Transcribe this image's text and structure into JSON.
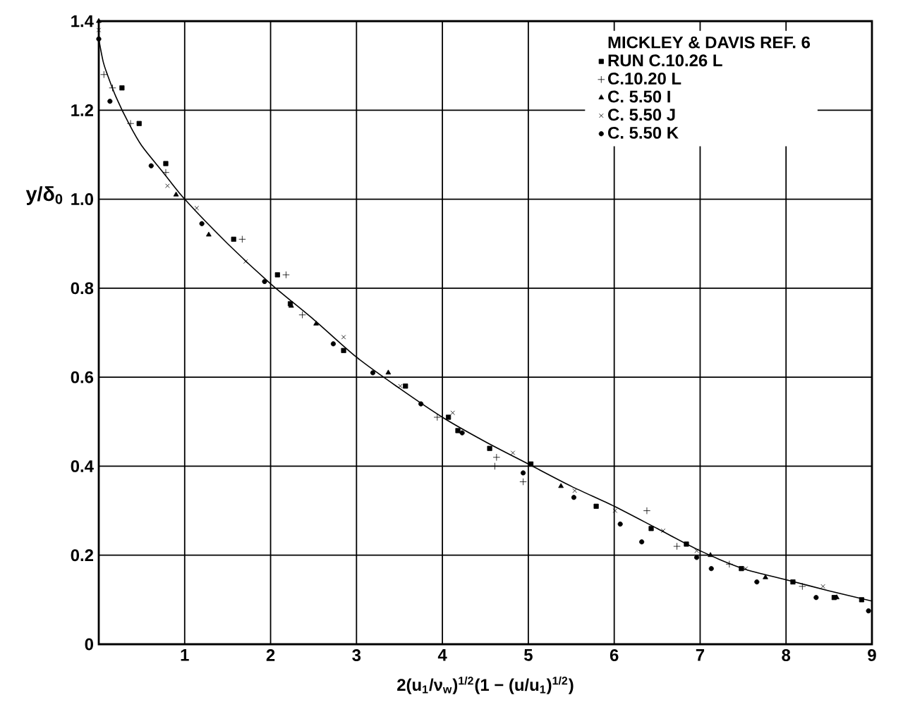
{
  "chart_data": {
    "type": "scatter",
    "xlabel": "2(u$_{1}$/ν$_{w}$)$^{1/2}$(1 − (u/u$_{1}$)$^{1/2}$)",
    "ylabel": "y/δ$_{0}$",
    "legend_title": "MICKLEY & DAVIS   REF. 6",
    "xlim": [
      0,
      9
    ],
    "ylim": [
      0,
      1.4
    ],
    "xticks": [
      {
        "value": 0,
        "label": null
      },
      1,
      2,
      3,
      4,
      5,
      6,
      7,
      8,
      9
    ],
    "yticks": [
      0,
      0.2,
      0.4,
      0.6,
      0.8,
      {
        "value": 1.0,
        "label": "1.0"
      },
      1.2,
      1.4
    ],
    "grid": true,
    "legend": "top right",
    "series": [
      {
        "name": "RUN C.10.26 L",
        "color": "#000000",
        "marker": "square",
        "x": [
          0.27,
          0.47,
          0.78,
          1.57,
          2.08,
          2.23,
          2.85,
          3.57,
          4.07,
          4.18,
          4.55,
          5.03,
          5.79,
          6.43,
          6.84,
          7.48,
          8.08,
          8.56,
          8.88
        ],
        "values": [
          1.25,
          1.17,
          1.08,
          0.91,
          0.83,
          0.765,
          0.66,
          0.58,
          0.51,
          0.48,
          0.44,
          0.405,
          0.31,
          0.26,
          0.225,
          0.17,
          0.14,
          0.105,
          0.1
        ]
      },
      {
        "name": "C.10.20 L",
        "color": "#000000",
        "marker": "plus",
        "x": [
          0.06,
          0.16,
          0.37,
          0.78,
          1.67,
          2.18,
          2.37,
          3.94,
          4.63,
          4.61,
          4.94,
          6.38,
          6.73,
          7.34,
          8.19
        ],
        "values": [
          1.28,
          1.25,
          1.17,
          1.06,
          0.91,
          0.83,
          0.74,
          0.51,
          0.42,
          0.4,
          0.365,
          0.3,
          0.22,
          0.18,
          0.13
        ]
      },
      {
        "name": "C. 5.50 I",
        "color": "#000000",
        "marker": "triangle",
        "x": [
          0.0,
          0.9,
          1.28,
          2.24,
          2.53,
          3.37,
          5.38,
          7.12,
          7.76,
          8.59
        ],
        "values": [
          1.4,
          1.01,
          0.92,
          0.76,
          0.72,
          0.61,
          0.355,
          0.2,
          0.15,
          0.105
        ]
      },
      {
        "name": "C. 5.50 J",
        "color": "#000000",
        "marker": "cross",
        "x": [
          0.0,
          0.8,
          1.14,
          1.71,
          2.85,
          3.51,
          4.12,
          4.82,
          5.54,
          6.01,
          6.57,
          6.96,
          7.53,
          8.43
        ],
        "values": [
          1.38,
          1.03,
          0.98,
          0.86,
          0.69,
          0.58,
          0.52,
          0.43,
          0.345,
          0.3,
          0.255,
          0.21,
          0.17,
          0.13
        ]
      },
      {
        "name": "C. 5.50 K",
        "color": "#000000",
        "marker": "circle",
        "x": [
          0.0,
          0.13,
          0.61,
          1.2,
          1.93,
          2.73,
          3.19,
          3.75,
          4.23,
          4.94,
          5.53,
          6.07,
          6.32,
          6.96,
          7.13,
          7.66,
          8.35,
          8.96
        ],
        "values": [
          1.36,
          1.22,
          1.075,
          0.945,
          0.815,
          0.675,
          0.61,
          0.54,
          0.475,
          0.385,
          0.33,
          0.27,
          0.23,
          0.195,
          0.17,
          0.14,
          0.105,
          0.075
        ]
      },
      {
        "type": "line",
        "color": "#000000",
        "marker": "none",
        "x": [
          0,
          0.05,
          0.1,
          0.2,
          0.35,
          0.5,
          0.75,
          1,
          1.5,
          2,
          2.5,
          3,
          3.5,
          4,
          4.5,
          5,
          5.5,
          6,
          6.5,
          7,
          7.5,
          8,
          8.5,
          9
        ],
        "values": [
          1.36,
          1.31,
          1.28,
          1.23,
          1.17,
          1.12,
          1.06,
          1.0,
          0.9,
          0.81,
          0.73,
          0.645,
          0.575,
          0.51,
          0.455,
          0.405,
          0.355,
          0.31,
          0.26,
          0.21,
          0.17,
          0.145,
          0.12,
          0.097
        ]
      }
    ]
  }
}
